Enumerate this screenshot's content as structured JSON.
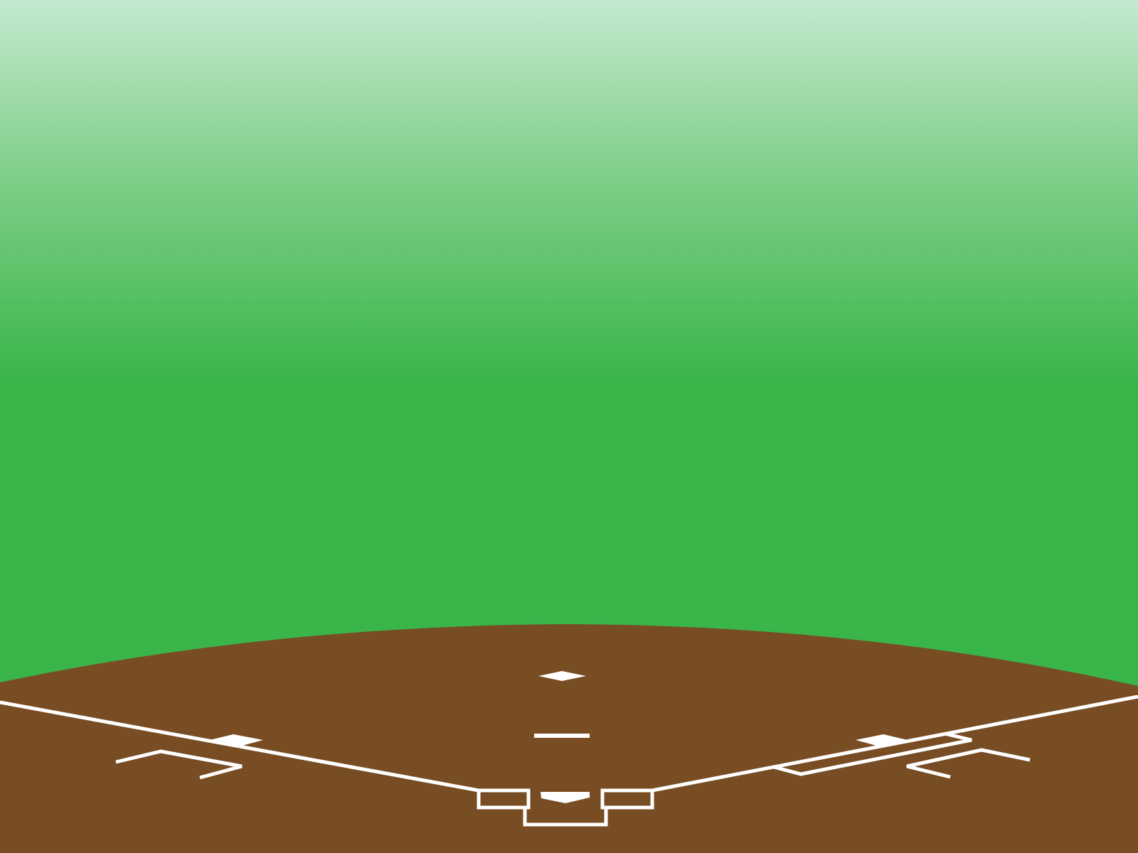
{
  "scene": {
    "subject": "baseball-infield",
    "colors": {
      "sky_top": "#c4ead0",
      "grass": "#39b54a",
      "dirt": "#784d24",
      "chalk": "#ffffff"
    }
  }
}
